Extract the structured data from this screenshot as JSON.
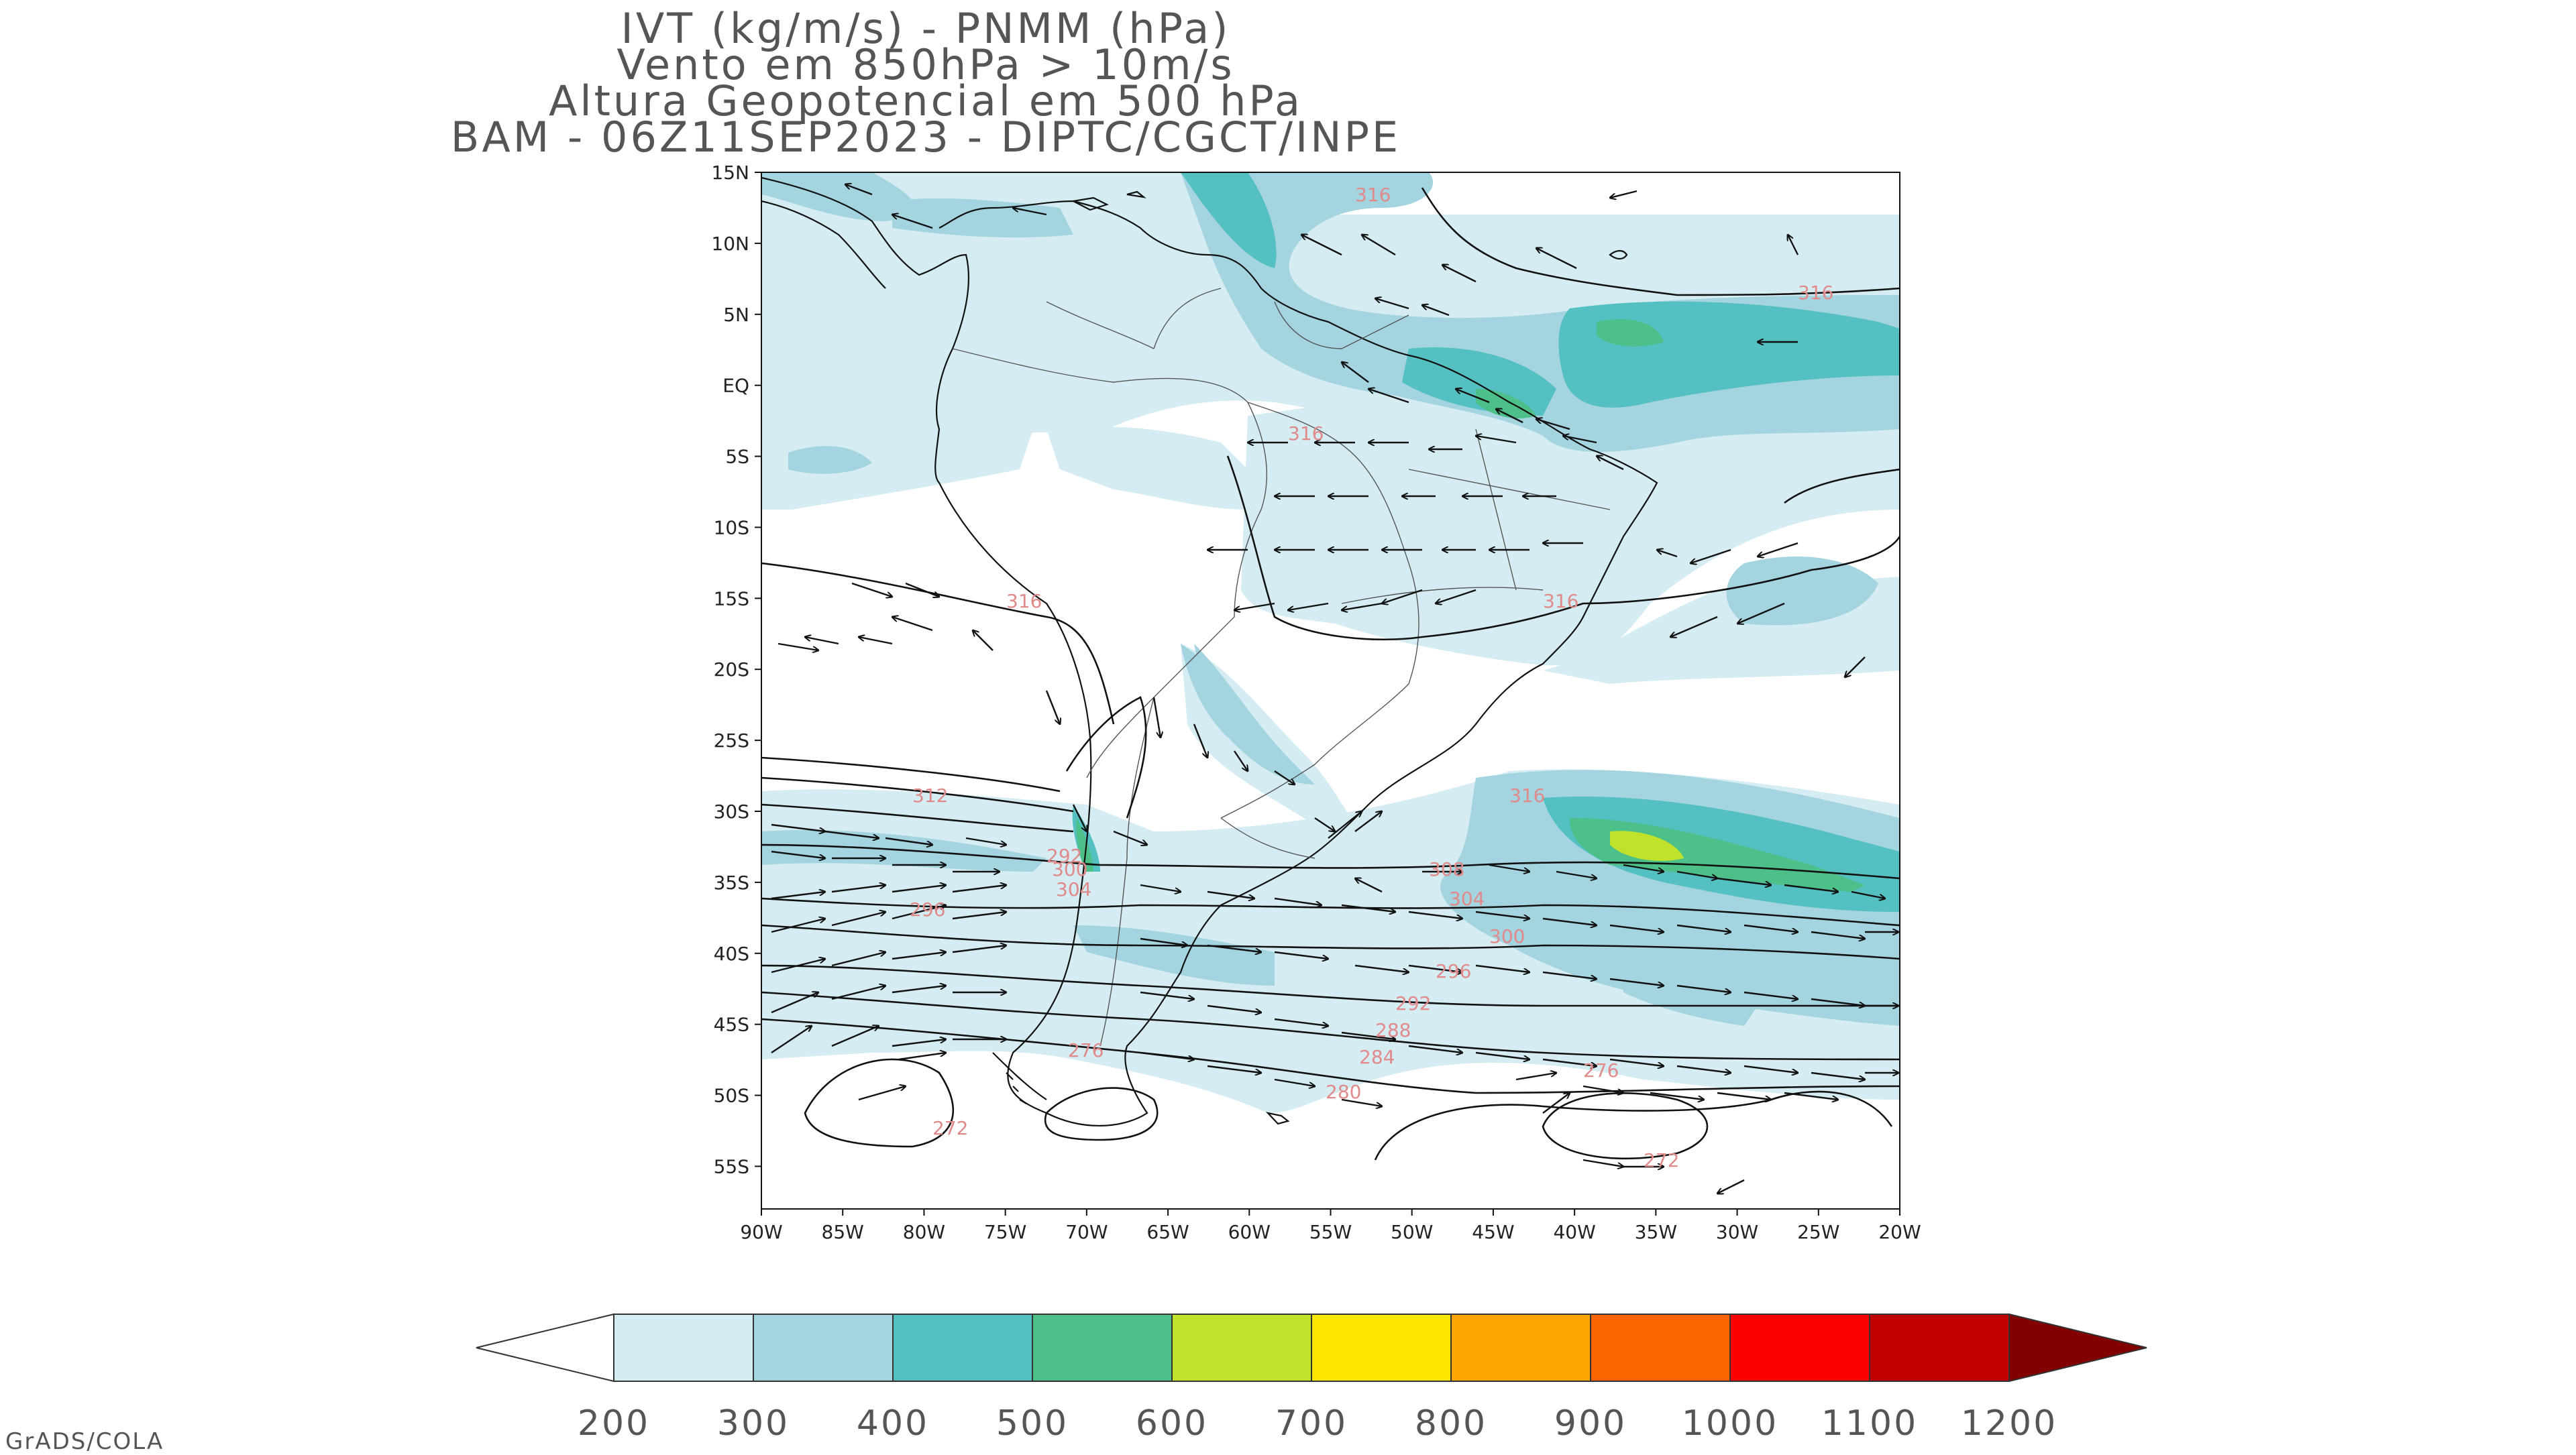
{
  "title": {
    "line1": "IVT (kg/m/s) - PNMM (hPa)",
    "line2": "Vento em 850hPa > 10m/s",
    "line3": "Altura Geopotencial em 500 hPa",
    "line4": "BAM - 06Z11SEP2023 - DIPTC/CGCT/INPE"
  },
  "axes": {
    "lat_labels": [
      "15N",
      "10N",
      "5N",
      "EQ",
      "5S",
      "10S",
      "15S",
      "20S",
      "25S",
      "30S",
      "35S",
      "40S",
      "45S",
      "50S",
      "55S"
    ],
    "lon_labels": [
      "90W",
      "85W",
      "80W",
      "75W",
      "70W",
      "65W",
      "60W",
      "55W",
      "50W",
      "45W",
      "40W",
      "35W",
      "30W",
      "25W",
      "20W"
    ],
    "lat_range": [
      -58,
      15
    ],
    "lon_range": [
      -90,
      -20
    ]
  },
  "colorbar": {
    "labels": [
      "200",
      "300",
      "400",
      "500",
      "600",
      "700",
      "800",
      "900",
      "1000",
      "1100",
      "1200"
    ],
    "colors": [
      "#d4ecf2",
      "#a3d4e0",
      "#55c0c1",
      "#4dbf88",
      "#c0e22a",
      "#fde600",
      "#fca400",
      "#fb6400",
      "#fb0000",
      "#c10000",
      "#820000"
    ]
  },
  "contour_labels": [
    "316",
    "316",
    "316",
    "316",
    "316",
    "312",
    "316",
    "308",
    "304",
    "300",
    "296",
    "296",
    "292",
    "292",
    "288",
    "284",
    "280",
    "276",
    "276",
    "272",
    "272",
    "300",
    "304"
  ],
  "credit": "GrADS/COLA"
}
